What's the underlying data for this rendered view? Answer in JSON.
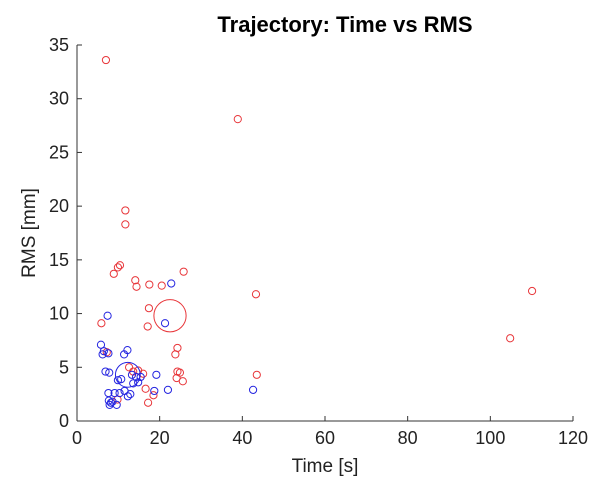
{
  "chart_data": {
    "type": "scatter",
    "title": "Trajectory: Time vs RMS",
    "xlabel": "Time [s]",
    "ylabel": "RMS [mm]",
    "xlim": [
      0,
      120
    ],
    "ylim": [
      0,
      35
    ],
    "xticks": [
      "0",
      "20",
      "40",
      "60",
      "80",
      "100",
      "120"
    ],
    "yticks": [
      "0",
      "5",
      "10",
      "15",
      "20",
      "25",
      "30",
      "35"
    ],
    "grid": false,
    "legend": "none",
    "series": [
      {
        "color": "#e8363a",
        "points": [
          [
            7,
            33.6
          ],
          [
            38.9,
            28.1
          ],
          [
            11.7,
            19.6
          ],
          [
            11.7,
            18.3
          ],
          [
            10.4,
            14.5
          ],
          [
            9.9,
            14.3
          ],
          [
            8.9,
            13.7
          ],
          [
            25.8,
            13.9
          ],
          [
            14.1,
            13.1
          ],
          [
            14.4,
            12.5
          ],
          [
            17.5,
            12.7
          ],
          [
            20.5,
            12.6
          ],
          [
            43.3,
            11.8
          ],
          [
            110.1,
            12.1
          ],
          [
            17.4,
            10.5
          ],
          [
            17.1,
            8.8
          ],
          [
            5.9,
            9.1
          ],
          [
            23.8,
            6.2
          ],
          [
            24.3,
            6.8
          ],
          [
            104.8,
            7.7
          ],
          [
            7.2,
            6.4
          ],
          [
            12.6,
            5.0
          ],
          [
            13.6,
            4.6
          ],
          [
            14.8,
            4.7
          ],
          [
            16,
            4.4
          ],
          [
            24.3,
            4.6
          ],
          [
            24.1,
            4.0
          ],
          [
            24.9,
            4.5
          ],
          [
            25.6,
            3.7
          ],
          [
            43.5,
            4.3
          ],
          [
            16.6,
            3.0
          ],
          [
            18.5,
            2.4
          ],
          [
            17.2,
            1.7
          ],
          [
            9.8,
            2.0
          ]
        ],
        "mean_circle": {
          "x": 22.5,
          "y": 9.8,
          "radius": 3.9
        }
      },
      {
        "color": "#2424e0",
        "points": [
          [
            7.4,
            9.8
          ],
          [
            22.8,
            12.8
          ],
          [
            21.3,
            9.1
          ],
          [
            5.8,
            7.1
          ],
          [
            6.5,
            6.5
          ],
          [
            6.2,
            6.2
          ],
          [
            7.6,
            6.3
          ],
          [
            11.4,
            6.2
          ],
          [
            12.2,
            6.6
          ],
          [
            6.9,
            4.6
          ],
          [
            7.8,
            4.5
          ],
          [
            13.3,
            4.3
          ],
          [
            14.3,
            4.1
          ],
          [
            14.8,
            3.6
          ],
          [
            15.4,
            4.1
          ],
          [
            10.7,
            3.9
          ],
          [
            9.9,
            3.8
          ],
          [
            13.6,
            3.5
          ],
          [
            19.2,
            4.3
          ],
          [
            7.6,
            2.6
          ],
          [
            9.1,
            2.6
          ],
          [
            10.3,
            2.6
          ],
          [
            11.5,
            2.8
          ],
          [
            12.3,
            2.3
          ],
          [
            12.9,
            2.5
          ],
          [
            18.7,
            2.8
          ],
          [
            22,
            2.9
          ],
          [
            42.6,
            2.9
          ],
          [
            7.7,
            1.9
          ],
          [
            8.2,
            1.7
          ],
          [
            8.6,
            1.8
          ],
          [
            7.9,
            1.5
          ],
          [
            9.6,
            1.5
          ]
        ],
        "mean_circle": {
          "x": 12.3,
          "y": 4.3,
          "radius": 3.0
        }
      }
    ]
  }
}
